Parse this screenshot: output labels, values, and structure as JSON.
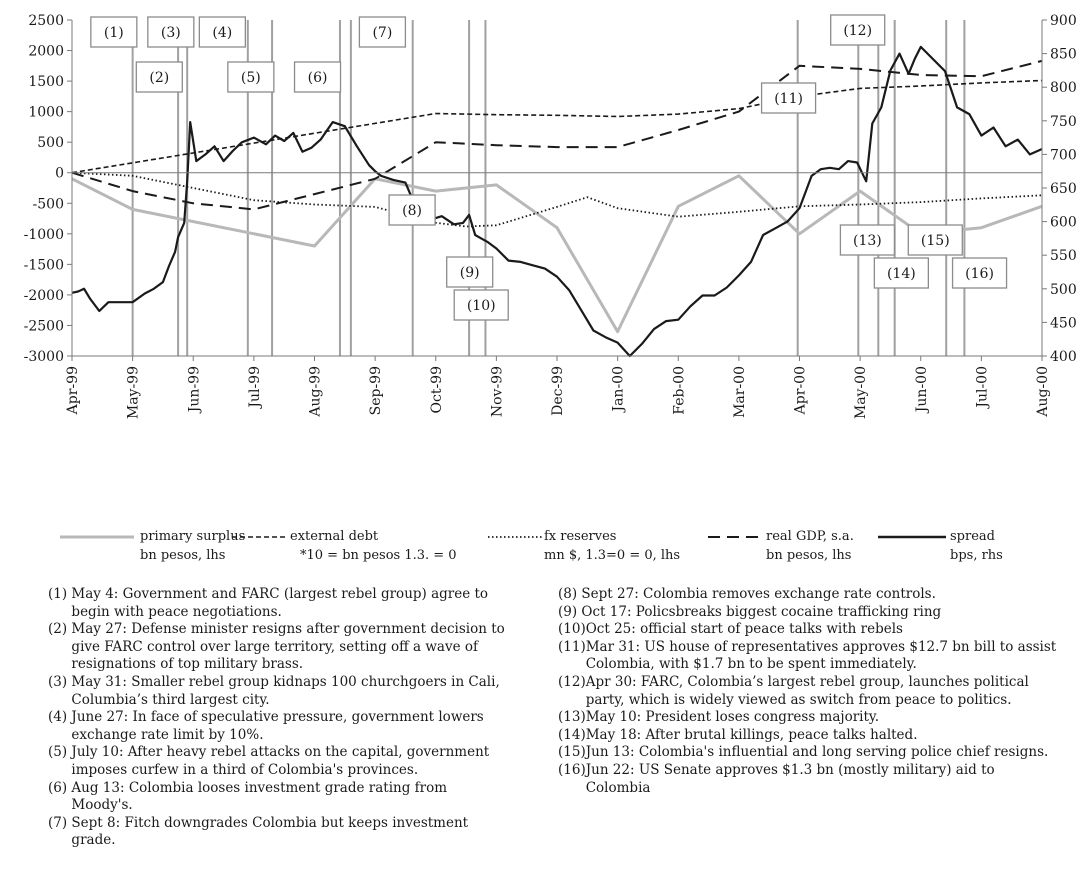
{
  "chart_data": {
    "type": "line",
    "x_tick_labels": [
      "Apr-99",
      "May-99",
      "Jun-99",
      "Jul-99",
      "Aug-99",
      "Sep-99",
      "Oct-99",
      "Nov-99",
      "Dec-99",
      "Jan-00",
      "Feb-00",
      "Mar-00",
      "Apr-00",
      "May-00",
      "Jun-00",
      "Jul-00",
      "Aug-00"
    ],
    "y_left": {
      "min": -3000,
      "max": 2500,
      "ticks": [
        2500,
        2000,
        1500,
        1000,
        500,
        0,
        -500,
        -1000,
        -1500,
        -2000,
        -2500,
        -3000
      ]
    },
    "y_right": {
      "min": 400,
      "max": 900,
      "ticks": [
        900,
        850,
        800,
        750,
        700,
        650,
        600,
        550,
        500,
        450,
        400
      ]
    },
    "grid": false,
    "colors": {
      "primary_surplus": "#b8b8b8",
      "other_series": "#1a1a1a",
      "event_lines": "#a0a0a0",
      "event_box_border": "#8c8c8c"
    },
    "series": [
      {
        "name": "primary surplus",
        "axis": "left",
        "style": "solid-gray",
        "x": [
          0,
          1,
          4,
          5,
          6,
          7,
          8,
          9,
          10,
          11,
          12,
          13,
          14,
          15,
          16
        ],
        "values": [
          -100,
          -600,
          -1200,
          -100,
          -300,
          -200,
          -900,
          -2600,
          -550,
          -50,
          -1000,
          -300,
          -1000,
          -900,
          -550
        ]
      },
      {
        "name": "external debt",
        "axis": "left",
        "style": "short-dash",
        "x": [
          0,
          6,
          7,
          8,
          9,
          10,
          11,
          12,
          13,
          14,
          15,
          16
        ],
        "values": [
          0,
          970,
          950,
          940,
          920,
          960,
          1050,
          1250,
          1380,
          1420,
          1470,
          1510
        ]
      },
      {
        "name": "fx reserves",
        "axis": "left",
        "style": "dotted",
        "x": [
          0,
          1,
          2,
          3,
          4,
          5,
          6,
          6.5,
          7,
          8,
          8.5,
          9,
          10,
          11,
          12,
          13,
          14,
          15,
          16
        ],
        "values": [
          0,
          -50,
          -250,
          -450,
          -520,
          -560,
          -820,
          -880,
          -860,
          -560,
          -400,
          -580,
          -720,
          -640,
          -550,
          -520,
          -480,
          -420,
          -370
        ]
      },
      {
        "name": "real GDP, s.a.",
        "axis": "left",
        "style": "long-dash",
        "x": [
          0,
          1,
          2,
          3,
          4,
          5,
          6,
          7,
          8,
          9,
          10,
          11,
          12,
          13,
          14,
          15,
          16
        ],
        "values": [
          0,
          -300,
          -500,
          -600,
          -350,
          -100,
          500,
          450,
          420,
          420,
          700,
          1000,
          1750,
          1700,
          1600,
          1580,
          1830
        ]
      },
      {
        "name": "spread",
        "axis": "right",
        "style": "solid-black",
        "x": [
          0,
          0.1,
          0.2,
          0.3,
          0.45,
          0.6,
          0.8,
          1.0,
          1.2,
          1.35,
          1.5,
          1.6,
          1.7,
          1.75,
          1.85,
          1.9,
          1.95,
          2.05,
          2.2,
          2.35,
          2.5,
          2.65,
          2.8,
          3.0,
          3.2,
          3.35,
          3.5,
          3.65,
          3.8,
          3.95,
          4.1,
          4.3,
          4.5,
          4.7,
          4.9,
          5.0,
          5.1,
          5.3,
          5.5,
          5.65,
          5.8,
          5.95,
          6.1,
          6.3,
          6.45,
          6.55,
          6.65,
          6.75,
          6.85,
          7.0,
          7.2,
          7.4,
          7.6,
          7.8,
          8.0,
          8.2,
          8.4,
          8.6,
          8.8,
          9.0,
          9.2,
          9.4,
          9.6,
          9.8,
          10.0,
          10.2,
          10.4,
          10.6,
          10.8,
          11.0,
          11.2,
          11.4,
          11.6,
          11.8,
          12.0,
          12.2,
          12.35,
          12.5,
          12.65,
          12.8,
          12.95,
          13.1,
          13.2,
          13.35,
          13.5,
          13.65,
          13.8,
          13.9,
          14.0,
          14.2,
          14.4,
          14.6,
          14.8,
          15.0,
          15.2,
          15.4,
          15.6,
          15.8,
          16.0
        ],
        "values": [
          494,
          496,
          500,
          485,
          467,
          480,
          480,
          480,
          493,
          500,
          510,
          534,
          555,
          577,
          598,
          660,
          748,
          690,
          700,
          712,
          690,
          705,
          718,
          725,
          715,
          728,
          720,
          732,
          704,
          710,
          722,
          748,
          742,
          712,
          684,
          675,
          668,
          662,
          658,
          626,
          616,
          604,
          608,
          596,
          598,
          610,
          580,
          575,
          570,
          560,
          542,
          540,
          535,
          530,
          518,
          498,
          468,
          438,
          428,
          420,
          400,
          418,
          440,
          452,
          454,
          474,
          490,
          490,
          502,
          520,
          540,
          580,
          590,
          600,
          620,
          668,
          678,
          680,
          678,
          690,
          688,
          660,
          746,
          770,
          825,
          850,
          820,
          842,
          860,
          842,
          824,
          770,
          760,
          728,
          740,
          712,
          722,
          700,
          708
        ]
      }
    ],
    "events": [
      {
        "id": "(1)",
        "x": 1.0
      },
      {
        "id": "(2)",
        "x": 1.75
      },
      {
        "id": "(3)",
        "x": 1.9
      },
      {
        "id": "(4)",
        "x": 2.9
      },
      {
        "id": "(5)",
        "x": 3.3
      },
      {
        "id": "(6)",
        "x": 4.42
      },
      {
        "id": "(7)",
        "x": 4.6
      },
      {
        "id": "(8)",
        "x": 5.62
      },
      {
        "id": "(9)",
        "x": 6.55
      },
      {
        "id": "(10)",
        "x": 6.82
      },
      {
        "id": "(11)",
        "x": 11.97
      },
      {
        "id": "(12)",
        "x": 12.97
      },
      {
        "id": "(13)",
        "x": 13.3
      },
      {
        "id": "(14)",
        "x": 13.57
      },
      {
        "id": "(15)",
        "x": 14.42
      },
      {
        "id": "(16)",
        "x": 14.72
      }
    ]
  },
  "legend": [
    {
      "line1": "primary surplus",
      "line2": "bn pesos, lhs",
      "style": "solid-gray"
    },
    {
      "line1": "external debt",
      "line2": "*10 = bn pesos 1.3. = 0",
      "style": "short-dash"
    },
    {
      "line1": "fx reserves",
      "line2": "mn $, 1.3=0 = 0, lhs",
      "style": "dotted"
    },
    {
      "line1": "real GDP, s.a.",
      "line2": "bn pesos, lhs",
      "style": "long-dash"
    },
    {
      "line1": "spread",
      "line2": "bps, rhs",
      "style": "solid-black"
    }
  ],
  "notes_left": [
    {
      "num": "(1) ",
      "text": "May 4: Government and FARC (largest rebel group) agree to begin with peace negotiations."
    },
    {
      "num": "(2) ",
      "text": "May 27: Defense minister resigns after government decision to give FARC control over large territory, setting off a wave of resignations of top military brass."
    },
    {
      "num": "(3) ",
      "text": "May 31: Smaller rebel group kidnaps 100 churchgoers in Cali, Columbia’s third largest city."
    },
    {
      "num": "(4) ",
      "text": "June 27: In face of speculative pressure, government lowers exchange rate limit by 10%."
    },
    {
      "num": "(5) ",
      "text": "July 10: After heavy rebel attacks on the capital, government imposes curfew in a third of Colombia's provinces."
    },
    {
      "num": "(6) ",
      "text": "Aug 13: Colombia looses investment grade rating from Moody's."
    },
    {
      "num": "(7) ",
      "text": "Sept 8: Fitch downgrades Colombia but keeps investment grade."
    }
  ],
  "notes_right": [
    {
      "num": "(8) ",
      "text": "Sept 27: Colombia removes exchange rate controls."
    },
    {
      "num": "(9) ",
      "text": "Oct 17: Policsbreaks biggest cocaine trafficking ring"
    },
    {
      "num": "(10)",
      "text": "Oct 25: official start of peace talks with rebels"
    },
    {
      "num": "(11)",
      "text": "Mar 31: US house of representatives approves $12.7 bn bill to assist Colombia, with $1.7 bn to be spent immediately."
    },
    {
      "num": "(12)",
      "text": "Apr 30: FARC, Colombia’s largest rebel group, launches political party, which is widely viewed as switch from peace to politics."
    },
    {
      "num": "(13)",
      "text": "May 10: President loses congress majority."
    },
    {
      "num": "(14)",
      "text": "May 18: After brutal killings, peace talks halted."
    },
    {
      "num": "(15)",
      "text": "Jun 13: Colombia's influential and long serving police chief resigns."
    },
    {
      "num": "(16)",
      "text": "Jun 22: US Senate approves $1.3 bn (mostly military) aid to Colombia"
    }
  ]
}
